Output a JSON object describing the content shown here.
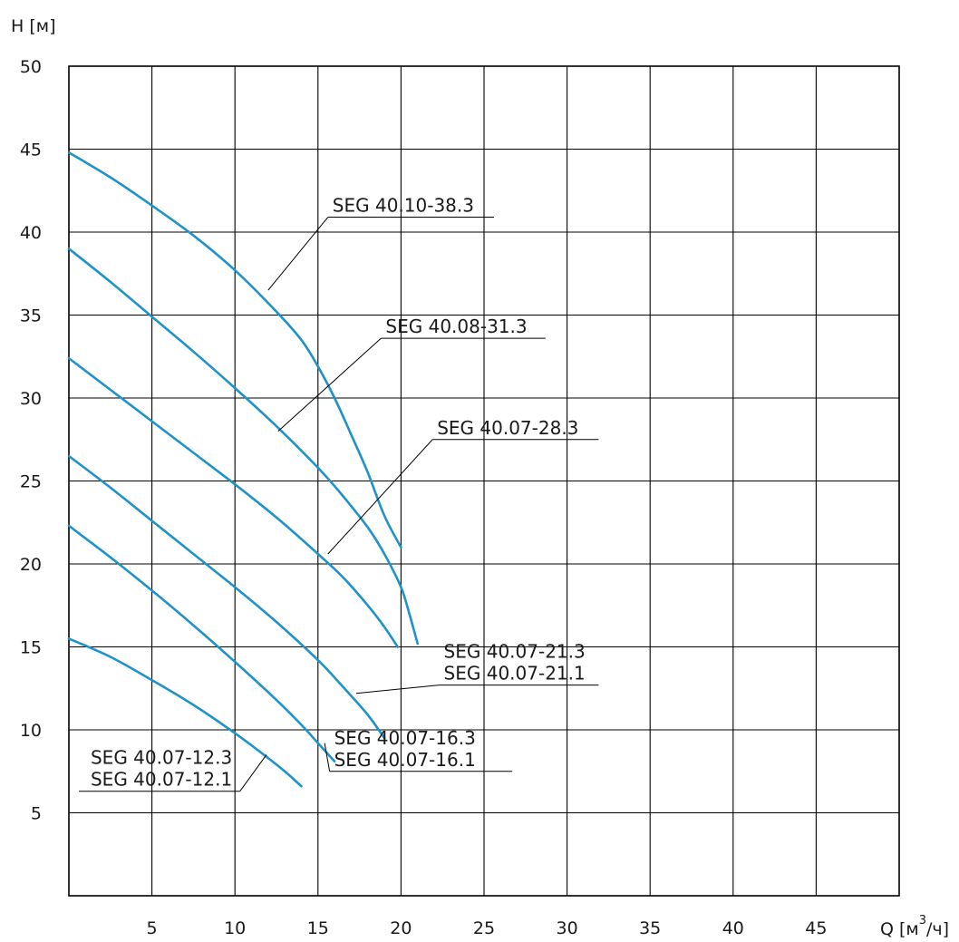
{
  "chart_data": {
    "type": "line",
    "ylabel": "H [м]",
    "xlabel_prefix": "Q [м",
    "xlabel_sup": "3",
    "xlabel_suffix": "/ч]",
    "xlim": [
      0,
      50
    ],
    "ylim": [
      0,
      50
    ],
    "x_ticks": [
      5,
      10,
      15,
      20,
      25,
      30,
      35,
      40,
      45
    ],
    "y_ticks": [
      5,
      10,
      15,
      20,
      25,
      30,
      35,
      40,
      45,
      50
    ],
    "grid": true,
    "line_color": "#1f93c8",
    "series": [
      {
        "name": "SEG 40.10-38.3",
        "x": [
          0,
          2.5,
          5,
          7.5,
          10,
          12.5,
          14,
          15,
          16,
          17,
          18,
          19,
          20
        ],
        "y": [
          44.8,
          43.3,
          41.6,
          39.8,
          37.7,
          35.2,
          33.5,
          31.9,
          30.0,
          27.8,
          25.5,
          22.9,
          21.0
        ]
      },
      {
        "name": "SEG 40.08-31.3",
        "x": [
          0,
          2.5,
          5,
          7.5,
          10,
          12.5,
          15,
          16.5,
          18,
          19,
          20,
          20.5,
          21
        ],
        "y": [
          39.0,
          37.0,
          34.9,
          32.8,
          30.6,
          28.3,
          25.8,
          24.1,
          22.2,
          20.6,
          18.6,
          17.0,
          15.2
        ]
      },
      {
        "name": "SEG 40.07-28.3",
        "x": [
          0,
          2.5,
          5,
          7.5,
          10,
          12.5,
          15,
          16.5,
          18,
          19,
          19.8
        ],
        "y": [
          32.4,
          30.5,
          28.6,
          26.7,
          24.8,
          22.8,
          20.6,
          19.2,
          17.5,
          16.2,
          15.0
        ]
      },
      {
        "name": "SEG 40.07-21.3 / SEG 40.07-21.1",
        "x": [
          0,
          2.5,
          5,
          7.5,
          10,
          12.5,
          15,
          16.5,
          18,
          19
        ],
        "y": [
          26.5,
          24.6,
          22.6,
          20.6,
          18.6,
          16.5,
          14.2,
          12.6,
          10.9,
          9.5
        ]
      },
      {
        "name": "SEG 40.07-16.3 / SEG 40.07-16.1",
        "x": [
          0,
          2.5,
          5,
          7.5,
          10,
          12.5,
          14,
          15,
          16
        ],
        "y": [
          22.3,
          20.4,
          18.4,
          16.3,
          14.1,
          11.8,
          10.3,
          9.2,
          8.1
        ]
      },
      {
        "name": "SEG 40.07-12.3 / SEG 40.07-12.1",
        "x": [
          0,
          2.5,
          5,
          7.5,
          10,
          12,
          13,
          14
        ],
        "y": [
          15.5,
          14.4,
          13.0,
          11.5,
          9.8,
          8.3,
          7.5,
          6.6
        ]
      }
    ],
    "annotations": [
      {
        "lines": [
          "SEG 40.10-38.3"
        ],
        "x1": 12,
        "y1": 36.5,
        "x2": 15.6,
        "y2": 40.9,
        "line_end": 25.6,
        "align": "start"
      },
      {
        "lines": [
          "SEG 40.08-31.3"
        ],
        "x1": 12.6,
        "y1": 28.0,
        "x2": 18.8,
        "y2": 33.6,
        "line_end": 28.7,
        "align": "start"
      },
      {
        "lines": [
          "SEG 40.07-28.3"
        ],
        "x1": 15.6,
        "y1": 20.6,
        "x2": 21.9,
        "y2": 27.5,
        "line_end": 31.9,
        "align": "start"
      },
      {
        "lines": [
          "SEG 40.07-21.3",
          "SEG 40.07-21.1"
        ],
        "x1": 17.3,
        "y1": 12.2,
        "x2": 22.3,
        "y2": 12.7,
        "line_end": 31.9,
        "align": "start"
      },
      {
        "lines": [
          "SEG 40.07-16.3",
          "SEG 40.07-16.1"
        ],
        "x1": 15.4,
        "y1": 9.2,
        "x2": 15.7,
        "y2": 7.5,
        "line_end": 26.7,
        "align": "start"
      },
      {
        "lines": [
          "SEG 40.07-12.3",
          "SEG 40.07-12.1"
        ],
        "x1": 11.9,
        "y1": 8.5,
        "x2": 10.3,
        "y2": 6.3,
        "line_end": 0.6,
        "align": "end"
      }
    ]
  }
}
